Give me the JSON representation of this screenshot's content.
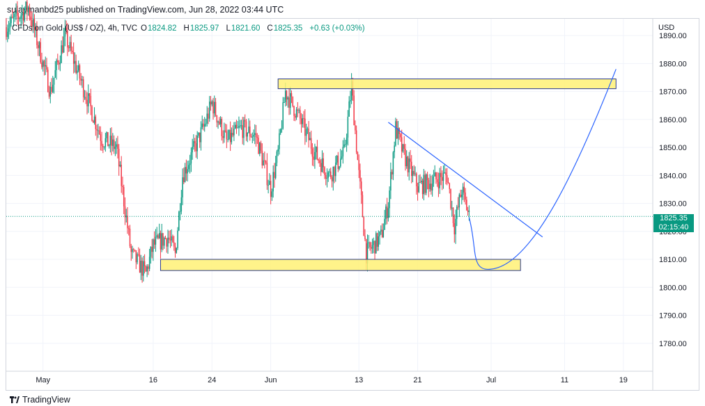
{
  "publisher_line": "sulaymanbd25 published on TradingView.com, Jun 28, 2022 03:44 UTC",
  "footer_brand": "TradingView",
  "legend": {
    "symbol": "CFDs on Gold (US$ / OZ), 4h, TVC",
    "open_label": "O",
    "open": "1824.82",
    "high_label": "H",
    "high": "1825.97",
    "low_label": "L",
    "low": "1821.60",
    "close_label": "C",
    "close": "1825.35",
    "change": "+0.63 (+0.03%)"
  },
  "currency": "USD",
  "last_price_label": "1825.35",
  "countdown_label": "02:15:40",
  "colors": {
    "up": "#089981",
    "down": "#f23645",
    "zone_fill": "#fff176",
    "zone_border": "#2962ff",
    "drawing": "#2962ff",
    "grid": "#f0f3fa"
  },
  "chart_data": {
    "type": "candlestick",
    "symbol": "CFDs on Gold (US$ / OZ)",
    "interval": "4h",
    "ylim": [
      1770,
      1896
    ],
    "y_ticks": [
      1780,
      1790,
      1800,
      1810,
      1820,
      1830,
      1840,
      1850,
      1860,
      1870,
      1880,
      1890
    ],
    "y_tick_labels": [
      "1780.00",
      "1790.00",
      "1800.00",
      "1810.00",
      "1820.00",
      "1830.00",
      "1840.00",
      "1850.00",
      "1860.00",
      "1870.00",
      "1880.00",
      "1890.00"
    ],
    "x_ticks": [
      "2022-05-01",
      "2022-05-16",
      "2022-05-24",
      "2022-06-01",
      "2022-06-13",
      "2022-06-21",
      "2022-07-01",
      "2022-07-11",
      "2022-07-19"
    ],
    "x_tick_labels": [
      "May",
      "16",
      "24",
      "Jun",
      "13",
      "21",
      "Jul",
      "11",
      "19"
    ],
    "xlim": [
      "2022-04-26",
      "2022-07-23"
    ],
    "last_price": 1825.35,
    "grid": true,
    "anchors": [
      [
        "2022-04-26",
        1893
      ],
      [
        "2022-04-29",
        1900
      ],
      [
        "2022-05-02",
        1870
      ],
      [
        "2022-05-04",
        1890
      ],
      [
        "2022-05-06",
        1875
      ],
      [
        "2022-05-09",
        1853
      ],
      [
        "2022-05-11",
        1850
      ],
      [
        "2022-05-13",
        1812
      ],
      [
        "2022-05-15",
        1805
      ],
      [
        "2022-05-16",
        1815
      ],
      [
        "2022-05-18",
        1818
      ],
      [
        "2022-05-19",
        1812
      ],
      [
        "2022-05-20",
        1840
      ],
      [
        "2022-05-23",
        1858
      ],
      [
        "2022-05-24",
        1866
      ],
      [
        "2022-05-26",
        1852
      ],
      [
        "2022-05-28",
        1857
      ],
      [
        "2022-05-30",
        1854
      ],
      [
        "2022-06-01",
        1835
      ],
      [
        "2022-06-02",
        1848
      ],
      [
        "2022-06-03",
        1870
      ],
      [
        "2022-06-05",
        1860
      ],
      [
        "2022-06-07",
        1848
      ],
      [
        "2022-06-09",
        1840
      ],
      [
        "2022-06-11",
        1848
      ],
      [
        "2022-06-12",
        1872
      ],
      [
        "2022-06-13",
        1840
      ],
      [
        "2022-06-14",
        1812
      ],
      [
        "2022-06-16",
        1818
      ],
      [
        "2022-06-17",
        1830
      ],
      [
        "2022-06-18",
        1857
      ],
      [
        "2022-06-19",
        1848
      ],
      [
        "2022-06-21",
        1836
      ],
      [
        "2022-06-23",
        1838
      ],
      [
        "2022-06-25",
        1840
      ],
      [
        "2022-06-26",
        1822
      ],
      [
        "2022-06-27",
        1835
      ],
      [
        "2022-06-28",
        1825.35
      ]
    ],
    "zones": [
      {
        "type": "rectangle",
        "x": [
          "2022-06-02",
          "2022-07-18"
        ],
        "y": [
          1871,
          1874.5
        ]
      },
      {
        "type": "rectangle",
        "x": [
          "2022-05-17",
          "2022-07-05"
        ],
        "y": [
          1806,
          1810
        ]
      }
    ],
    "trendline": [
      [
        "2022-06-17",
        1859
      ],
      [
        "2022-07-08",
        1818
      ]
    ],
    "projection_curve": [
      [
        "2022-06-28",
        1825
      ],
      [
        "2022-07-01",
        1806.5
      ],
      [
        "2022-07-18",
        1878
      ]
    ]
  }
}
